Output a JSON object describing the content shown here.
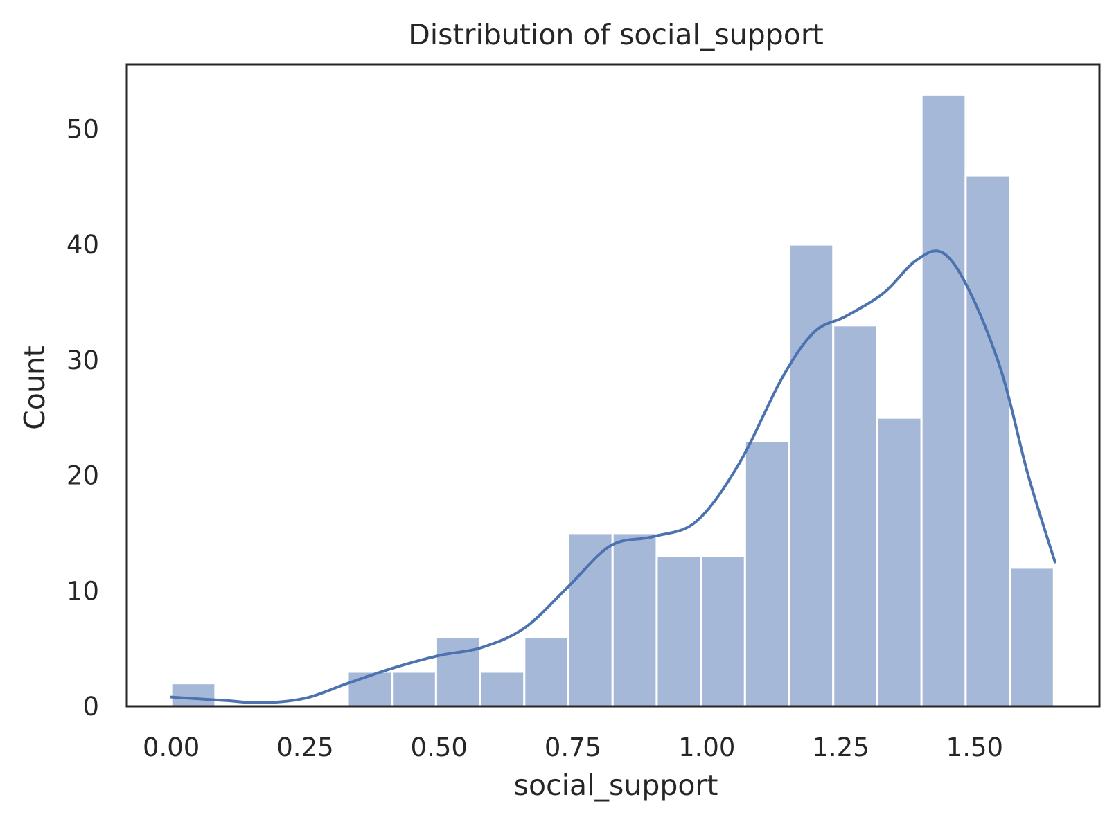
{
  "chart_data": {
    "type": "bar",
    "title": "Distribution of social_support",
    "xlabel": "social_support",
    "ylabel": "Count",
    "xlim": [
      -0.083,
      1.733
    ],
    "ylim": [
      0,
      55.6
    ],
    "x_ticks": [
      "0.00",
      "0.25",
      "0.50",
      "0.75",
      "1.00",
      "1.25",
      "1.50"
    ],
    "x_tick_values": [
      0,
      0.25,
      0.5,
      0.75,
      1.0,
      1.25,
      1.5
    ],
    "y_ticks": [
      "0",
      "10",
      "20",
      "30",
      "40",
      "50"
    ],
    "y_tick_values": [
      0,
      10,
      20,
      30,
      40,
      50
    ],
    "bin_width": 0.0824,
    "bin_start": 0.0,
    "counts": [
      2,
      0,
      0,
      0,
      3,
      3,
      6,
      3,
      6,
      15,
      15,
      13,
      13,
      23,
      40,
      33,
      25,
      53,
      46,
      12
    ],
    "kde": {
      "name": "kde",
      "x": [
        0.0,
        0.1,
        0.17,
        0.25,
        0.33,
        0.42,
        0.5,
        0.58,
        0.66,
        0.74,
        0.82,
        0.9,
        0.98,
        1.06,
        1.14,
        1.2,
        1.26,
        1.33,
        1.39,
        1.44,
        1.49,
        1.55,
        1.6,
        1.65
      ],
      "y": [
        0.8,
        0.5,
        0.3,
        0.7,
        2.0,
        3.4,
        4.4,
        5.1,
        6.8,
        10.3,
        13.9,
        14.7,
        16.0,
        21.0,
        28.4,
        32.4,
        33.8,
        35.8,
        38.6,
        39.3,
        36.0,
        29.0,
        20.0,
        12.5
      ]
    },
    "grid": false,
    "legend": "none",
    "colors": {
      "bar_fill": "#a6b8d8",
      "bar_edge": "#ffffff",
      "kde_line": "#4c72b0",
      "axes": "#262626",
      "text": "#262626"
    }
  }
}
